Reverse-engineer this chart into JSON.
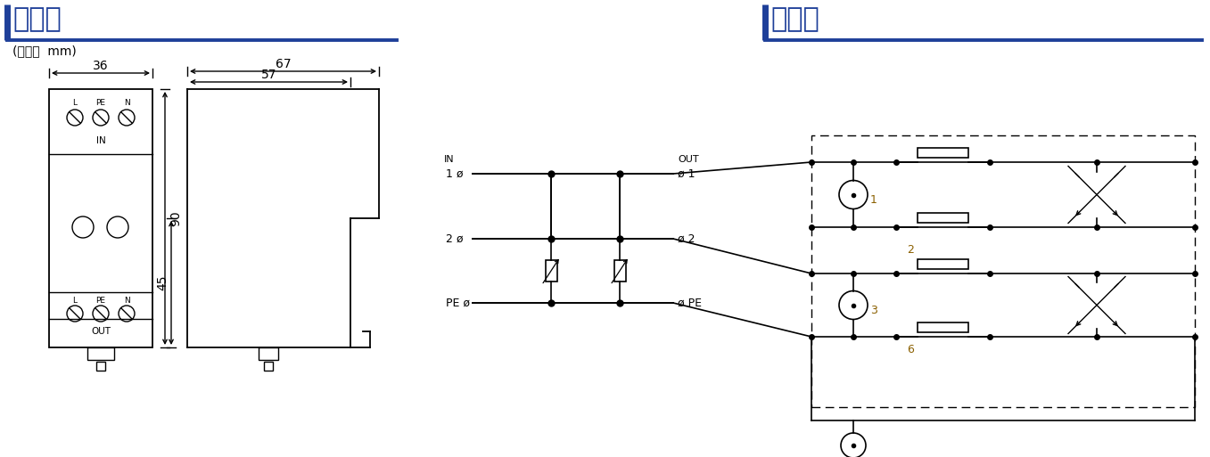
{
  "bg_color": "#ffffff",
  "title_color": "#1e3f99",
  "line_color": "#000000",
  "orange_color": "#8B6000",
  "title_left": "尺寸图",
  "subtitle_left": "(单位：  mm)",
  "title_right": "电路图",
  "dim_36": "36",
  "dim_67": "67",
  "dim_57": "57",
  "dim_90": "90",
  "dim_45": "45"
}
